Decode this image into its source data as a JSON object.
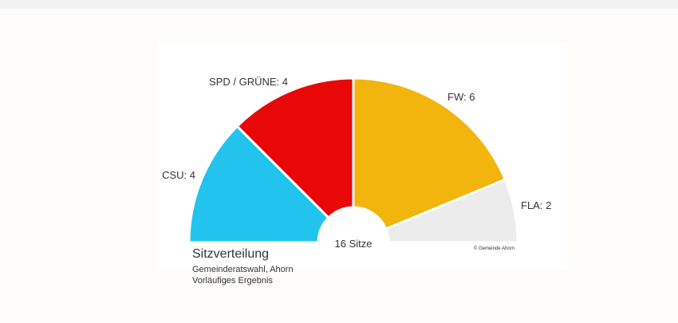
{
  "chart_data": {
    "type": "pie",
    "variant": "semicircle-donut",
    "title": "Sitzverteilung",
    "subtitle": [
      "Gemeinderatswahl, Ahorn",
      "Vorläufiges Ergebnis"
    ],
    "center_label": "16 Sitze",
    "credit": "© Gemeinde Ahorn",
    "categories": [
      "CSU",
      "SPD / GRÜNE",
      "FW",
      "FLA"
    ],
    "values": [
      4,
      4,
      6,
      2
    ],
    "colors": [
      "#22c4ee",
      "#e80808",
      "#f2b50d",
      "#ececec"
    ],
    "data_labels": [
      "CSU: 4",
      "SPD / GRÜNE: 4",
      "FW: 6",
      "FLA: 2"
    ],
    "total": 16
  }
}
